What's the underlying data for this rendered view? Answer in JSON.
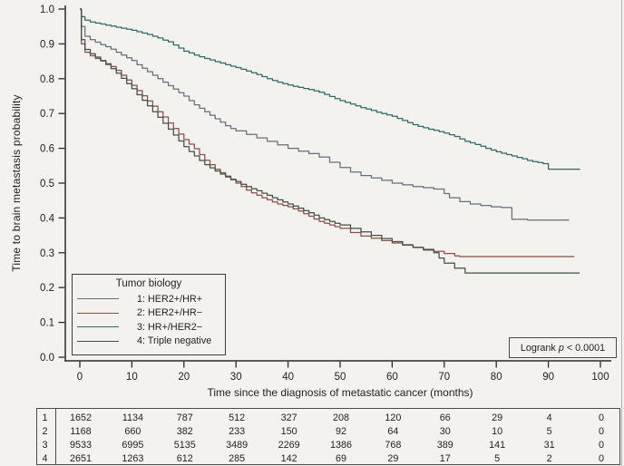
{
  "figure": {
    "background": "#f3f2ef"
  },
  "logrank": {
    "prefix": "Logrank ",
    "p": "p",
    "suffix": " < 0.0001"
  },
  "chart_data": {
    "type": "line",
    "style": "kaplan-meier-step",
    "title": "",
    "xlabel": "Time since the diagnosis of metastatic cancer (months)",
    "ylabel": "Time to brain metastasis probability",
    "xlim": [
      0,
      100
    ],
    "ylim": [
      0.0,
      1.0
    ],
    "x_ticks": [
      0,
      10,
      20,
      30,
      40,
      50,
      60,
      70,
      80,
      90,
      100
    ],
    "y_ticks": [
      0.0,
      0.1,
      0.2,
      0.3,
      0.4,
      0.5,
      0.6,
      0.7,
      0.8,
      0.9,
      1.0
    ],
    "grid": false,
    "annotation": "Logrank p < 0.0001",
    "legend": {
      "title": "Tumor biology",
      "position": "lower-left"
    },
    "series": [
      {
        "name": "1: HER2+/HR+",
        "color": "#64707c",
        "points": [
          [
            0,
            1
          ],
          [
            0.3,
            0.95
          ],
          [
            1,
            0.922
          ],
          [
            2,
            0.912
          ],
          [
            3,
            0.905
          ],
          [
            4,
            0.898
          ],
          [
            5,
            0.892
          ],
          [
            6,
            0.885
          ],
          [
            7,
            0.876
          ],
          [
            8,
            0.868
          ],
          [
            9,
            0.86
          ],
          [
            10,
            0.852
          ],
          [
            11,
            0.84
          ],
          [
            12,
            0.83
          ],
          [
            13,
            0.82
          ],
          [
            14,
            0.81
          ],
          [
            15,
            0.8
          ],
          [
            16,
            0.79
          ],
          [
            17,
            0.78
          ],
          [
            18,
            0.77
          ],
          [
            19,
            0.76
          ],
          [
            20,
            0.75
          ],
          [
            21,
            0.737
          ],
          [
            22,
            0.725
          ],
          [
            23,
            0.715
          ],
          [
            24,
            0.705
          ],
          [
            25,
            0.695
          ],
          [
            26,
            0.685
          ],
          [
            27,
            0.675
          ],
          [
            28,
            0.665
          ],
          [
            29,
            0.657
          ],
          [
            30,
            0.65
          ],
          [
            32,
            0.64
          ],
          [
            34,
            0.63
          ],
          [
            36,
            0.62
          ],
          [
            38,
            0.61
          ],
          [
            40,
            0.6
          ],
          [
            42,
            0.592
          ],
          [
            44,
            0.585
          ],
          [
            46,
            0.575
          ],
          [
            48,
            0.56
          ],
          [
            50,
            0.545
          ],
          [
            52,
            0.532
          ],
          [
            54,
            0.522
          ],
          [
            56,
            0.515
          ],
          [
            58,
            0.508
          ],
          [
            60,
            0.5
          ],
          [
            62,
            0.495
          ],
          [
            64,
            0.49
          ],
          [
            66,
            0.487
          ],
          [
            68,
            0.483
          ],
          [
            70,
            0.47
          ],
          [
            71,
            0.458
          ],
          [
            73,
            0.447
          ],
          [
            75,
            0.44
          ],
          [
            77,
            0.436
          ],
          [
            79,
            0.432
          ],
          [
            81,
            0.43
          ],
          [
            83,
            0.396
          ],
          [
            86,
            0.394
          ],
          [
            94,
            0.394
          ]
        ]
      },
      {
        "name": "2: HER2+/HR−",
        "color": "#8e4f46",
        "points": [
          [
            0,
            1
          ],
          [
            0.3,
            0.9
          ],
          [
            1,
            0.876
          ],
          [
            2,
            0.866
          ],
          [
            3,
            0.858
          ],
          [
            4,
            0.851
          ],
          [
            5,
            0.843
          ],
          [
            6,
            0.835
          ],
          [
            7,
            0.824
          ],
          [
            8,
            0.81
          ],
          [
            9,
            0.796
          ],
          [
            10,
            0.781
          ],
          [
            11,
            0.766
          ],
          [
            12,
            0.751
          ],
          [
            13,
            0.736
          ],
          [
            14,
            0.721
          ],
          [
            15,
            0.705
          ],
          [
            16,
            0.69
          ],
          [
            17,
            0.673
          ],
          [
            18,
            0.657
          ],
          [
            19,
            0.641
          ],
          [
            20,
            0.625
          ],
          [
            21,
            0.612
          ],
          [
            22,
            0.599
          ],
          [
            23,
            0.582
          ],
          [
            24,
            0.566
          ],
          [
            25,
            0.553
          ],
          [
            26,
            0.54
          ],
          [
            27,
            0.53
          ],
          [
            28,
            0.52
          ],
          [
            29,
            0.51
          ],
          [
            30,
            0.5
          ],
          [
            31,
            0.49
          ],
          [
            32,
            0.48
          ],
          [
            33,
            0.472
          ],
          [
            34,
            0.465
          ],
          [
            35,
            0.458
          ],
          [
            36,
            0.452
          ],
          [
            37,
            0.446
          ],
          [
            38,
            0.44
          ],
          [
            39,
            0.436
          ],
          [
            40,
            0.432
          ],
          [
            41,
            0.426
          ],
          [
            42,
            0.42
          ],
          [
            43,
            0.412
          ],
          [
            44,
            0.405
          ],
          [
            45,
            0.397
          ],
          [
            46,
            0.39
          ],
          [
            47,
            0.385
          ],
          [
            48,
            0.38
          ],
          [
            49,
            0.375
          ],
          [
            50,
            0.37
          ],
          [
            52,
            0.358
          ],
          [
            54,
            0.348
          ],
          [
            56,
            0.342
          ],
          [
            58,
            0.335
          ],
          [
            60,
            0.328
          ],
          [
            62,
            0.322
          ],
          [
            64,
            0.316
          ],
          [
            66,
            0.31
          ],
          [
            68,
            0.304
          ],
          [
            70,
            0.298
          ],
          [
            72,
            0.291
          ],
          [
            73,
            0.289
          ],
          [
            95,
            0.289
          ]
        ]
      },
      {
        "name": "3: HR+/HER2−",
        "color": "#2e6b66",
        "points": [
          [
            0,
            1
          ],
          [
            0.3,
            0.978
          ],
          [
            1,
            0.968
          ],
          [
            2,
            0.963
          ],
          [
            3,
            0.96
          ],
          [
            4,
            0.957
          ],
          [
            5,
            0.954
          ],
          [
            6,
            0.951
          ],
          [
            7,
            0.948
          ],
          [
            8,
            0.945
          ],
          [
            9,
            0.942
          ],
          [
            10,
            0.939
          ],
          [
            11,
            0.935
          ],
          [
            12,
            0.931
          ],
          [
            13,
            0.927
          ],
          [
            14,
            0.922
          ],
          [
            15,
            0.917
          ],
          [
            16,
            0.911
          ],
          [
            17,
            0.906
          ],
          [
            18,
            0.897
          ],
          [
            19,
            0.888
          ],
          [
            20,
            0.879
          ],
          [
            21,
            0.874
          ],
          [
            22,
            0.868
          ],
          [
            23,
            0.863
          ],
          [
            24,
            0.858
          ],
          [
            25,
            0.854
          ],
          [
            26,
            0.849
          ],
          [
            27,
            0.845
          ],
          [
            28,
            0.84
          ],
          [
            29,
            0.836
          ],
          [
            30,
            0.832
          ],
          [
            31,
            0.827
          ],
          [
            32,
            0.822
          ],
          [
            33,
            0.817
          ],
          [
            34,
            0.812
          ],
          [
            35,
            0.806
          ],
          [
            36,
            0.8
          ],
          [
            37,
            0.795
          ],
          [
            38,
            0.79
          ],
          [
            39,
            0.786
          ],
          [
            40,
            0.782
          ],
          [
            41,
            0.778
          ],
          [
            42,
            0.775
          ],
          [
            43,
            0.772
          ],
          [
            44,
            0.769
          ],
          [
            45,
            0.765
          ],
          [
            46,
            0.761
          ],
          [
            47,
            0.755
          ],
          [
            48,
            0.749
          ],
          [
            49,
            0.743
          ],
          [
            50,
            0.737
          ],
          [
            51,
            0.732
          ],
          [
            52,
            0.727
          ],
          [
            53,
            0.722
          ],
          [
            54,
            0.717
          ],
          [
            55,
            0.713
          ],
          [
            56,
            0.709
          ],
          [
            57,
            0.704
          ],
          [
            58,
            0.7
          ],
          [
            59,
            0.696
          ],
          [
            60,
            0.692
          ],
          [
            61,
            0.686
          ],
          [
            62,
            0.68
          ],
          [
            63,
            0.674
          ],
          [
            64,
            0.668
          ],
          [
            65,
            0.663
          ],
          [
            66,
            0.659
          ],
          [
            67,
            0.655
          ],
          [
            68,
            0.652
          ],
          [
            69,
            0.648
          ],
          [
            70,
            0.644
          ],
          [
            71,
            0.639
          ],
          [
            72,
            0.634
          ],
          [
            73,
            0.627
          ],
          [
            74,
            0.62
          ],
          [
            75,
            0.616
          ],
          [
            76,
            0.611
          ],
          [
            77,
            0.606
          ],
          [
            78,
            0.6
          ],
          [
            79,
            0.595
          ],
          [
            80,
            0.59
          ],
          [
            81,
            0.586
          ],
          [
            82,
            0.582
          ],
          [
            83,
            0.578
          ],
          [
            84,
            0.574
          ],
          [
            85,
            0.57
          ],
          [
            86,
            0.565
          ],
          [
            87,
            0.562
          ],
          [
            88,
            0.559
          ],
          [
            89,
            0.556
          ],
          [
            90,
            0.54
          ],
          [
            96,
            0.538
          ]
        ]
      },
      {
        "name": "4: Triple negative",
        "color": "#414f46",
        "points": [
          [
            0,
            1
          ],
          [
            0.3,
            0.912
          ],
          [
            1,
            0.884
          ],
          [
            2,
            0.872
          ],
          [
            3,
            0.862
          ],
          [
            4,
            0.852
          ],
          [
            5,
            0.841
          ],
          [
            6,
            0.829
          ],
          [
            7,
            0.816
          ],
          [
            8,
            0.801
          ],
          [
            9,
            0.786
          ],
          [
            10,
            0.771
          ],
          [
            11,
            0.754
          ],
          [
            12,
            0.738
          ],
          [
            13,
            0.722
          ],
          [
            14,
            0.705
          ],
          [
            15,
            0.689
          ],
          [
            16,
            0.672
          ],
          [
            17,
            0.655
          ],
          [
            18,
            0.638
          ],
          [
            19,
            0.621
          ],
          [
            20,
            0.605
          ],
          [
            21,
            0.591
          ],
          [
            22,
            0.578
          ],
          [
            23,
            0.565
          ],
          [
            24,
            0.553
          ],
          [
            25,
            0.544
          ],
          [
            26,
            0.535
          ],
          [
            27,
            0.526
          ],
          [
            28,
            0.518
          ],
          [
            29,
            0.511
          ],
          [
            30,
            0.505
          ],
          [
            31,
            0.497
          ],
          [
            32,
            0.49
          ],
          [
            33,
            0.484
          ],
          [
            34,
            0.478
          ],
          [
            35,
            0.471
          ],
          [
            36,
            0.465
          ],
          [
            37,
            0.458
          ],
          [
            38,
            0.452
          ],
          [
            39,
            0.446
          ],
          [
            40,
            0.44
          ],
          [
            41,
            0.434
          ],
          [
            42,
            0.428
          ],
          [
            43,
            0.421
          ],
          [
            44,
            0.415
          ],
          [
            45,
            0.408
          ],
          [
            46,
            0.4
          ],
          [
            47,
            0.395
          ],
          [
            48,
            0.39
          ],
          [
            49,
            0.385
          ],
          [
            50,
            0.38
          ],
          [
            52,
            0.37
          ],
          [
            54,
            0.36
          ],
          [
            56,
            0.35
          ],
          [
            58,
            0.341
          ],
          [
            60,
            0.332
          ],
          [
            62,
            0.323
          ],
          [
            64,
            0.315
          ],
          [
            66,
            0.308
          ],
          [
            68,
            0.3
          ],
          [
            69,
            0.285
          ],
          [
            70,
            0.27
          ],
          [
            72,
            0.256
          ],
          [
            74,
            0.242
          ],
          [
            96,
            0.242
          ]
        ]
      }
    ],
    "number_at_risk": {
      "times": [
        0,
        10,
        20,
        30,
        40,
        50,
        60,
        70,
        80,
        90,
        100
      ],
      "groups": [
        {
          "label": "1",
          "counts": [
            1652,
            1134,
            787,
            512,
            327,
            208,
            120,
            66,
            29,
            4,
            0
          ]
        },
        {
          "label": "2",
          "counts": [
            1168,
            660,
            382,
            233,
            150,
            92,
            64,
            30,
            10,
            5,
            0
          ]
        },
        {
          "label": "3",
          "counts": [
            9533,
            6995,
            5135,
            3489,
            2269,
            1386,
            768,
            389,
            141,
            31,
            0
          ]
        },
        {
          "label": "4",
          "counts": [
            2651,
            1263,
            612,
            285,
            142,
            69,
            29,
            17,
            5,
            2,
            0
          ]
        }
      ]
    }
  }
}
